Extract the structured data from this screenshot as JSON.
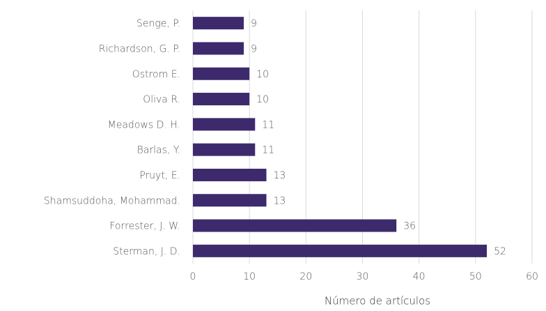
{
  "chart_data": {
    "type": "hbar",
    "categories": [
      "Senge, P.",
      "Richardson, G. P.",
      "Ostrom E.",
      "Oliva R.",
      "Meadows D. H.",
      "Barlas, Y.",
      "Pruyt, E.",
      "Shamsuddoha, Mohammad.",
      "Forrester, J. W.",
      "Sterman, J. D."
    ],
    "values": [
      9,
      9,
      10,
      10,
      11,
      11,
      13,
      13,
      36,
      52
    ],
    "color": "#3d2a6d",
    "xlim": [
      0,
      60
    ],
    "xticks": [
      0,
      10,
      20,
      30,
      40,
      50,
      60
    ],
    "grid": true,
    "x_label": "Número de artículos"
  }
}
